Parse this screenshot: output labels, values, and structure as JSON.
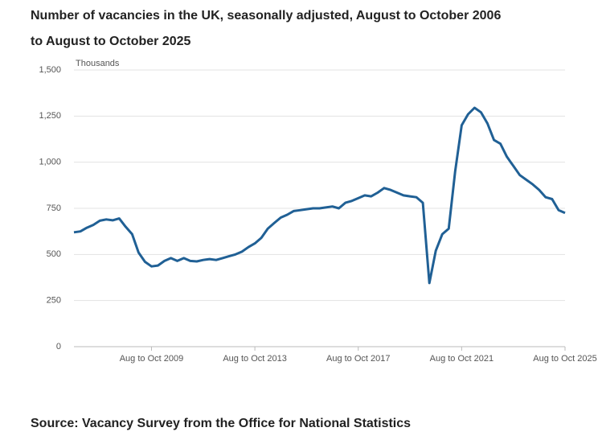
{
  "chart_data": {
    "type": "line",
    "title": "Number of vacancies in the UK, seasonally adjusted, August to October 2006 to August to October 2025",
    "y_label": "Thousands",
    "source": "Source: Vacancy Survey from the Office for National Statistics",
    "categories": [
      null,
      null,
      null,
      null,
      null,
      null,
      null,
      null,
      null,
      null,
      null,
      null,
      "Aug to Oct 2009",
      null,
      null,
      null,
      null,
      null,
      null,
      null,
      null,
      null,
      null,
      null,
      null,
      null,
      null,
      null,
      "Aug to Oct 2013",
      null,
      null,
      null,
      null,
      null,
      null,
      null,
      null,
      null,
      null,
      null,
      null,
      null,
      null,
      null,
      "Aug to Oct 2017",
      null,
      null,
      null,
      null,
      null,
      null,
      null,
      null,
      null,
      null,
      null,
      null,
      null,
      null,
      null,
      "Aug to Oct 2021",
      null,
      null,
      null,
      null,
      null,
      null,
      null,
      null,
      null,
      null,
      null,
      null,
      null,
      null,
      null,
      "Aug to Oct 2025"
    ],
    "series": [
      {
        "name": "Vacancies",
        "color": "#206095",
        "values": [
          620,
          625,
          645,
          660,
          683,
          690,
          685,
          695,
          650,
          610,
          510,
          460,
          435,
          440,
          465,
          480,
          465,
          480,
          465,
          462,
          470,
          475,
          470,
          480,
          490,
          500,
          515,
          540,
          560,
          590,
          640,
          670,
          700,
          715,
          735,
          740,
          745,
          750,
          750,
          755,
          760,
          750,
          780,
          790,
          805,
          820,
          815,
          835,
          860,
          850,
          835,
          820,
          815,
          810,
          780,
          345,
          520,
          610,
          640,
          950,
          1200,
          1260,
          1295,
          1270,
          1210,
          1120,
          1100,
          1030,
          980,
          930,
          905,
          880,
          850,
          810,
          800,
          740,
          725
        ]
      }
    ],
    "ylim": [
      0,
      1500
    ],
    "yticks": [
      0,
      250,
      500,
      750,
      {
        "value": 1000,
        "label": "1,000"
      },
      {
        "value": 1250,
        "label": "1,250"
      },
      {
        "value": 1500,
        "label": "1,500"
      }
    ],
    "grid": true
  }
}
